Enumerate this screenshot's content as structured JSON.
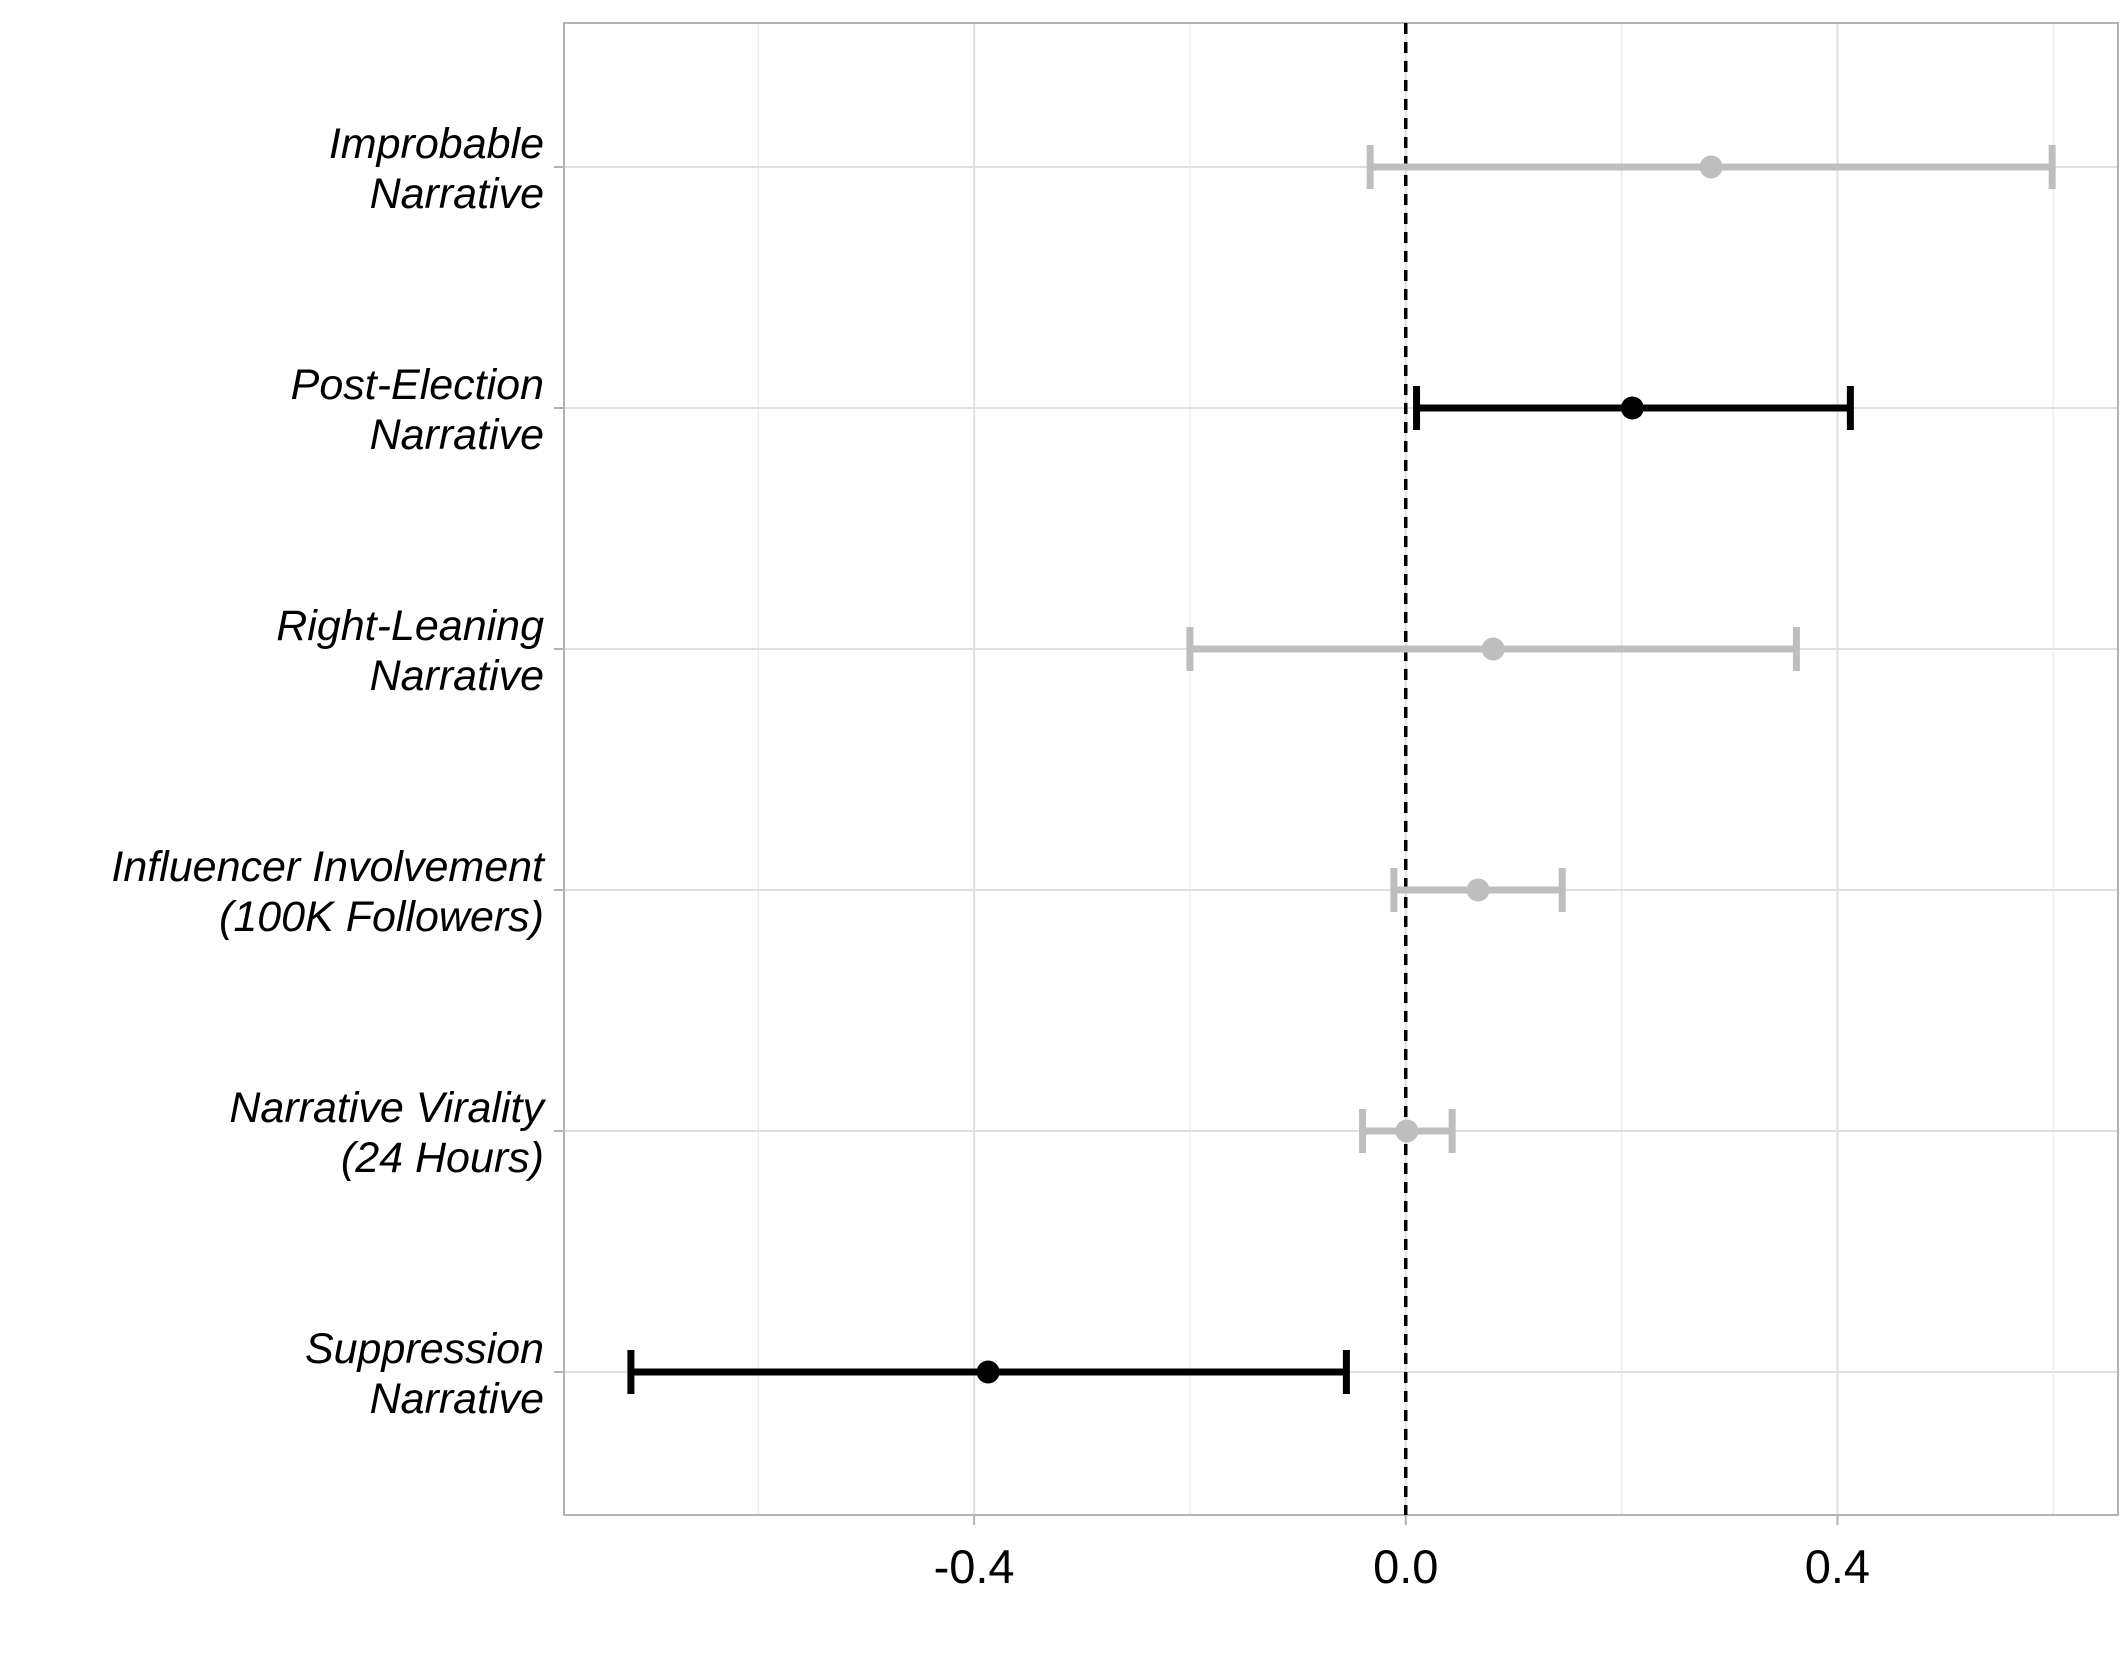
{
  "chart_data": {
    "type": "forest",
    "orientation": "horizontal",
    "title": "",
    "xlabel": "",
    "ylabel": "",
    "xlim": [
      -0.78,
      0.66
    ],
    "x_ticks": [
      -0.4,
      0.0,
      0.4
    ],
    "x_tick_labels": [
      "-0.4",
      "0.0",
      "0.4"
    ],
    "x_minor_gridlines": [
      -0.6,
      -0.2,
      0.2,
      0.6
    ],
    "reference_line": {
      "x": 0.0,
      "style": "dashed",
      "color": "#000000"
    },
    "grid": true,
    "legend": "none",
    "colors": {
      "significant": "#000000",
      "not_significant": "#bebebe",
      "grid": "#e0e0e0",
      "panel_border": "#b3b3b3"
    },
    "categories": [
      "Improbable\nNarrative",
      "Post-Election\nNarrative",
      "Right-Leaning\nNarrative",
      "Influencer Involvement\n(100K Followers)",
      "Narrative Virality\n(24 Hours)",
      "Suppression\nNarrative"
    ],
    "estimates": [
      {
        "estimate": 0.283,
        "lower": -0.033,
        "upper": 0.599,
        "significant": false
      },
      {
        "estimate": 0.21,
        "lower": 0.01,
        "upper": 0.412,
        "significant": true
      },
      {
        "estimate": 0.081,
        "lower": -0.2,
        "upper": 0.362,
        "significant": false
      },
      {
        "estimate": 0.067,
        "lower": -0.011,
        "upper": 0.145,
        "significant": false
      },
      {
        "estimate": 0.001,
        "lower": -0.04,
        "upper": 0.043,
        "significant": false
      },
      {
        "estimate": -0.387,
        "lower": -0.718,
        "upper": -0.055,
        "significant": true
      }
    ]
  }
}
